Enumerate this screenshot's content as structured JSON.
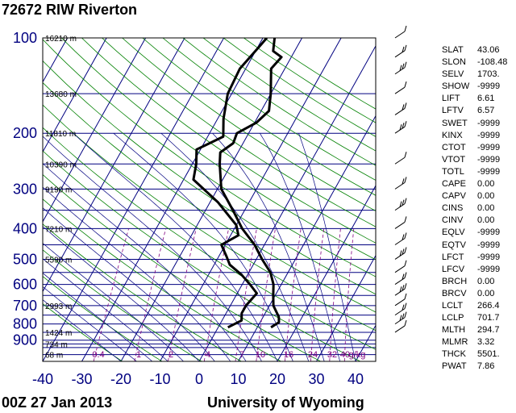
{
  "header": {
    "title": "72672 RIW Riverton"
  },
  "footer": {
    "left": "00Z 27 Jan 2013",
    "right": "University of Wyoming"
  },
  "chart_data": {
    "type": "line",
    "title": "72672 RIW Riverton",
    "xlabel": "",
    "ylabel": "",
    "x_scale": "skew-T temperature (C)",
    "y_scale": "log pressure (hPa)",
    "xlim": [
      -40,
      45
    ],
    "ylim": [
      1050,
      100
    ],
    "grid": true,
    "pressure_ticks": [
      100,
      200,
      300,
      400,
      500,
      600,
      700,
      800,
      900
    ],
    "temperature_ticks": [
      -40,
      -30,
      -20,
      -10,
      0,
      10,
      20,
      30,
      40
    ],
    "height_labels": [
      {
        "p": 100,
        "text": "16210 m"
      },
      {
        "p": 150,
        "text": "13680 m"
      },
      {
        "p": 200,
        "text": "11810 m"
      },
      {
        "p": 250,
        "text": "10390 m"
      },
      {
        "p": 300,
        "text": "9190 m"
      },
      {
        "p": 400,
        "text": "7210 m"
      },
      {
        "p": 500,
        "text": "5590 m"
      },
      {
        "p": 700,
        "text": "2993 m"
      },
      {
        "p": 850,
        "text": "1424 m"
      },
      {
        "p": 925,
        "text": "734 m"
      },
      {
        "p": 1000,
        "text": "68 m"
      }
    ],
    "mixing_ratio_labels": [
      "0.4",
      "1",
      "2",
      "4",
      "7",
      "10",
      "16",
      "24",
      "32",
      "40",
      "g/kg"
    ],
    "series": [
      {
        "color": "#000000",
        "points": [
          {
            "p": 820,
            "t": 13.5
          },
          {
            "p": 790,
            "t": 14.8
          },
          {
            "p": 760,
            "t": 14.0
          },
          {
            "p": 700,
            "t": 11.0
          },
          {
            "p": 650,
            "t": 9.5
          },
          {
            "p": 600,
            "t": 8.0
          },
          {
            "p": 550,
            "t": 5.5
          },
          {
            "p": 500,
            "t": 1.5
          },
          {
            "p": 450,
            "t": -2.5
          },
          {
            "p": 400,
            "t": -8.0
          },
          {
            "p": 350,
            "t": -13.0
          },
          {
            "p": 300,
            "t": -19.0
          },
          {
            "p": 250,
            "t": -23.0
          },
          {
            "p": 230,
            "t": -24.5
          },
          {
            "p": 215,
            "t": -22.5
          },
          {
            "p": 200,
            "t": -23.0
          },
          {
            "p": 185,
            "t": -19.5
          },
          {
            "p": 170,
            "t": -18.0
          },
          {
            "p": 150,
            "t": -20.0
          },
          {
            "p": 125,
            "t": -23.5
          },
          {
            "p": 115,
            "t": -22.5
          },
          {
            "p": 110,
            "t": -25.5
          },
          {
            "p": 100,
            "t": -27.0
          }
        ]
      },
      {
        "color": "#000000",
        "points": [
          {
            "p": 820,
            "t": 2.5
          },
          {
            "p": 780,
            "t": 5.0
          },
          {
            "p": 740,
            "t": 4.0
          },
          {
            "p": 700,
            "t": 4.0
          },
          {
            "p": 640,
            "t": 5.0
          },
          {
            "p": 600,
            "t": 2.0
          },
          {
            "p": 560,
            "t": -1.5
          },
          {
            "p": 520,
            "t": -6.0
          },
          {
            "p": 490,
            "t": -8.0
          },
          {
            "p": 450,
            "t": -11.0
          },
          {
            "p": 420,
            "t": -8.0
          },
          {
            "p": 390,
            "t": -10.0
          },
          {
            "p": 330,
            "t": -18.0
          },
          {
            "p": 280,
            "t": -27.5
          },
          {
            "p": 250,
            "t": -29.0
          },
          {
            "p": 225,
            "t": -31.0
          },
          {
            "p": 205,
            "t": -26.0
          },
          {
            "p": 180,
            "t": -28.5
          },
          {
            "p": 150,
            "t": -31.0
          },
          {
            "p": 125,
            "t": -31.5
          },
          {
            "p": 105,
            "t": -29.5
          },
          {
            "p": 100,
            "t": -29.0
          }
        ]
      }
    ]
  },
  "indices": [
    {
      "key": "SLAT",
      "value": "43.06"
    },
    {
      "key": "SLON",
      "value": "-108.48"
    },
    {
      "key": "SELV",
      "value": "1703."
    },
    {
      "key": "SHOW",
      "value": "-9999"
    },
    {
      "key": "LIFT",
      "value": "6.61"
    },
    {
      "key": "LFTV",
      "value": "6.57"
    },
    {
      "key": "SWET",
      "value": "-9999"
    },
    {
      "key": "KINX",
      "value": "-9999"
    },
    {
      "key": "CTOT",
      "value": "-9999"
    },
    {
      "key": "VTOT",
      "value": "-9999"
    },
    {
      "key": "TOTL",
      "value": "-9999"
    },
    {
      "key": "CAPE",
      "value": "0.00"
    },
    {
      "key": "CAPV",
      "value": "0.00"
    },
    {
      "key": "CINS",
      "value": "0.00"
    },
    {
      "key": "CINV",
      "value": "0.00"
    },
    {
      "key": "EQLV",
      "value": "-9999"
    },
    {
      "key": "EQTV",
      "value": "-9999"
    },
    {
      "key": "LFCT",
      "value": "-9999"
    },
    {
      "key": "LFCV",
      "value": "-9999"
    },
    {
      "key": "BRCH",
      "value": "0.00"
    },
    {
      "key": "BRCV",
      "value": "0.00"
    },
    {
      "key": "LCLT",
      "value": "266.4"
    },
    {
      "key": "LCLP",
      "value": "701.7"
    },
    {
      "key": "MLTH",
      "value": "294.7"
    },
    {
      "key": "MLMR",
      "value": "3.32"
    },
    {
      "key": "THCK",
      "value": "5501."
    },
    {
      "key": "PWAT",
      "value": "7.86"
    }
  ],
  "colors": {
    "axis_text": "#000080",
    "isobar": "#000080",
    "isotherm": "#000080",
    "dry_adiabat": "#008000",
    "moist_adiabat": "#000080",
    "mixing_ratio": "#800080",
    "sounding": "#000000"
  }
}
